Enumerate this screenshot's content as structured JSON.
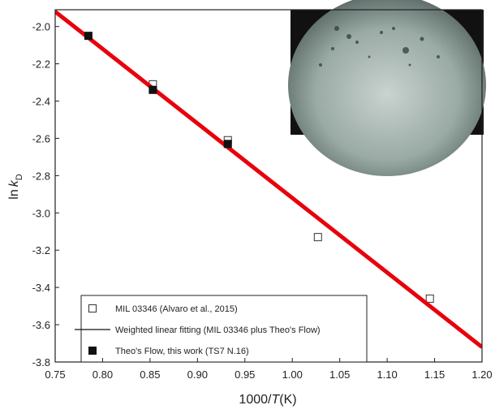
{
  "chart_data": {
    "type": "scatter",
    "x_label": {
      "prefix": "1000/",
      "var": "T",
      "suffix": "(K)"
    },
    "y_label": {
      "prefix": "ln",
      "var": "k",
      "sub": "D"
    },
    "xlim": [
      0.75,
      1.2
    ],
    "xticks": [
      0.75,
      {
        "value": 0.8,
        "label": "0.80"
      },
      0.85,
      {
        "value": 0.9,
        "label": "0.90"
      },
      0.95,
      {
        "value": 1,
        "label": "1.00"
      },
      1.05,
      {
        "value": 1.1,
        "label": "1.10"
      },
      1.15,
      {
        "value": 1.2,
        "label": "1.20"
      }
    ],
    "ylim": [
      -3.8,
      -1.91
    ],
    "yticks": [
      {
        "value": -3.8,
        "label": "-3.8"
      },
      -3.6,
      -3.4,
      -3.2,
      {
        "value": -3,
        "label": "-3.0"
      },
      -2.8,
      -2.6,
      -2.4,
      -2.2,
      {
        "value": -2,
        "label": "-2.0"
      }
    ],
    "series": [
      {
        "name": "MIL 03346 (Alvaro et al., 2015)",
        "kind": "open-square",
        "color": "#333333",
        "x": [
          0.853,
          0.932,
          1.027,
          1.145
        ],
        "values": [
          -2.31,
          -2.61,
          -3.13,
          -3.46
        ]
      },
      {
        "name": "Weighted linear fitting (MIL 03346 plus Theo's Flow)",
        "kind": "line",
        "color": "#e8000b",
        "x": [
          0.75,
          1.2
        ],
        "values": [
          -1.92,
          -3.72
        ]
      },
      {
        "name": "Theo's Flow, this work (TS7 N.16)",
        "kind": "filled-square",
        "color": "#111111",
        "x": [
          0.785,
          0.853,
          0.932
        ],
        "values": [
          -2.05,
          -2.34,
          -2.63
        ]
      }
    ]
  }
}
